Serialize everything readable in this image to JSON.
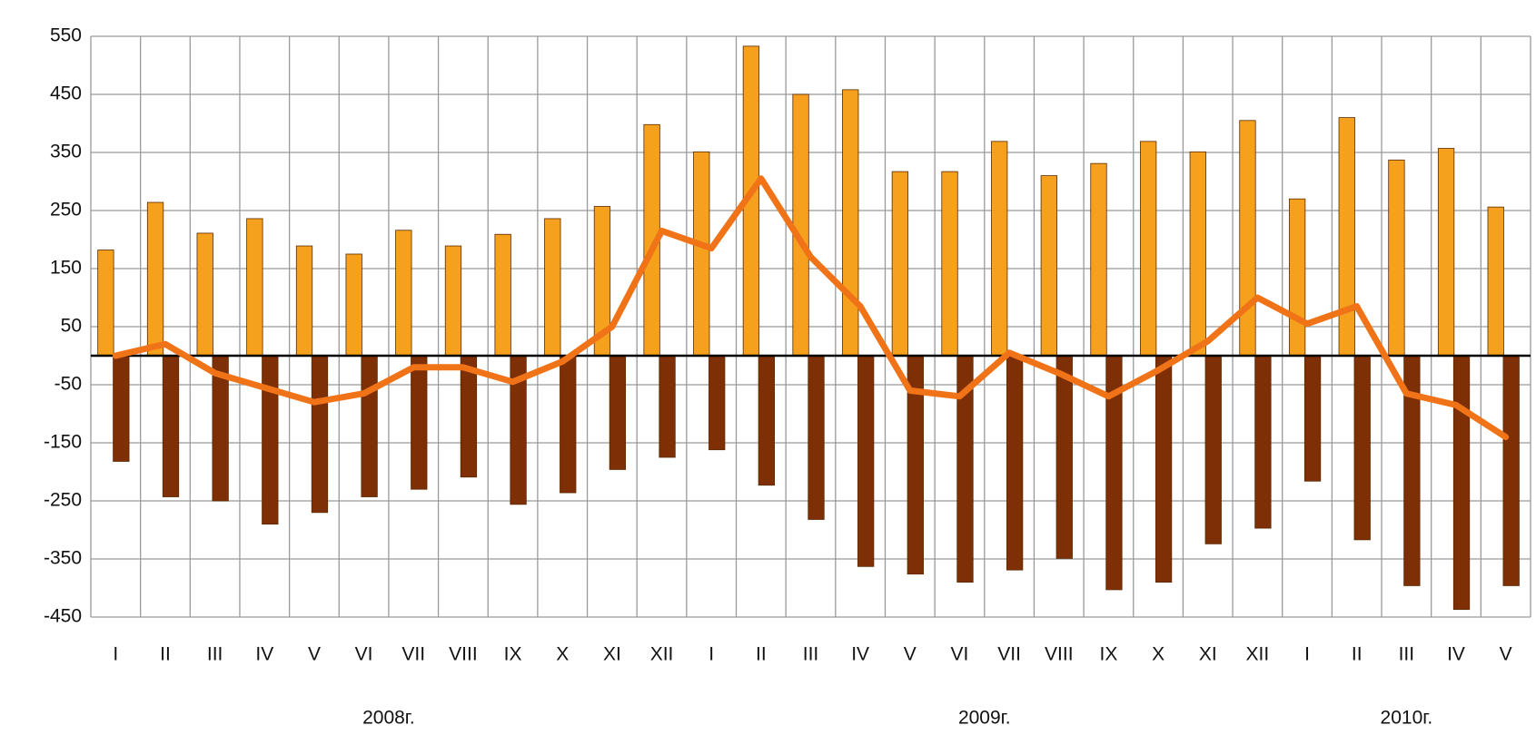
{
  "chart_data": {
    "type": "bar_line",
    "categories": [
      "I",
      "II",
      "III",
      "IV",
      "V",
      "VI",
      "VII",
      "VIII",
      "IX",
      "X",
      "XI",
      "XII",
      "I",
      "II",
      "III",
      "IV",
      "V",
      "VI",
      "VII",
      "VIII",
      "IX",
      "X",
      "XI",
      "XII",
      "I",
      "II",
      "III",
      "IV",
      "V"
    ],
    "groups": [
      "2008г.",
      "2009г.",
      "2010г."
    ],
    "series": [
      {
        "type": "bar",
        "color": "#f5a11e",
        "values": [
          182,
          264,
          211,
          236,
          189,
          175,
          216,
          189,
          209,
          236,
          257,
          398,
          351,
          533,
          450,
          458,
          317,
          317,
          369,
          310,
          331,
          369,
          351,
          405,
          270,
          410,
          337,
          357,
          256
        ]
      },
      {
        "type": "bar",
        "color": "#7f2f06",
        "values": [
          -182,
          -243,
          -250,
          -290,
          -270,
          -243,
          -230,
          -209,
          -256,
          -236,
          -196,
          -175,
          -162,
          -223,
          -282,
          -363,
          -376,
          -390,
          -369,
          -349,
          -403,
          -390,
          -324,
          -297,
          -216,
          -317,
          -396,
          -437,
          -396
        ]
      },
      {
        "type": "line",
        "color": "#f07318",
        "values": [
          0,
          20,
          -30,
          -55,
          -80,
          -65,
          -20,
          -20,
          -45,
          -10,
          50,
          215,
          185,
          305,
          170,
          85,
          -60,
          -70,
          5,
          -30,
          -70,
          -25,
          25,
          100,
          55,
          85,
          -65,
          -85,
          -140
        ]
      }
    ],
    "ylim": [
      -450,
      550
    ],
    "yticks": [
      -450,
      -350,
      -250,
      -150,
      -50,
      50,
      150,
      250,
      350,
      450,
      550
    ],
    "grid": true
  }
}
